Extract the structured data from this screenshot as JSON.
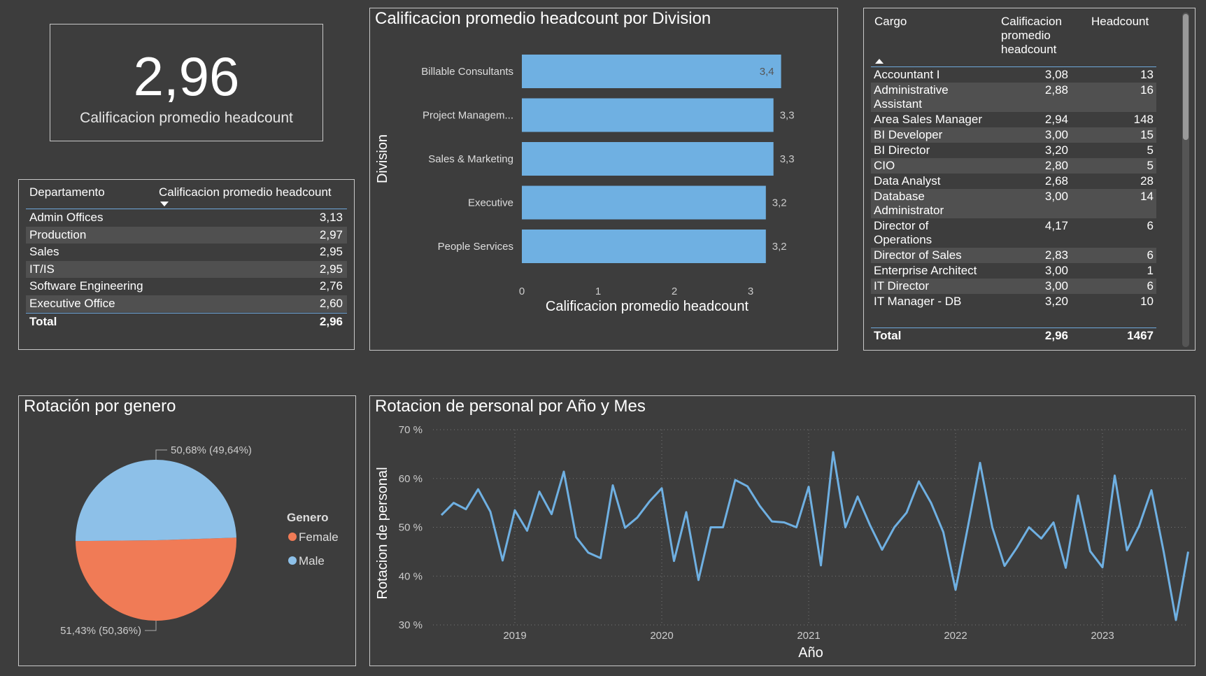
{
  "kpi": {
    "value": "2,96",
    "label": "Calificacion promedio headcount"
  },
  "dept_table": {
    "headers": [
      "Departamento",
      "Calificacion promedio headcount"
    ],
    "rows": [
      {
        "name": "Admin Offices",
        "value": "3,13"
      },
      {
        "name": "Production",
        "value": "2,97"
      },
      {
        "name": "Sales",
        "value": "2,95"
      },
      {
        "name": "IT/IS",
        "value": "2,95"
      },
      {
        "name": "Software Engineering",
        "value": "2,76"
      },
      {
        "name": "Executive Office",
        "value": "2,60"
      }
    ],
    "total": {
      "name": "Total",
      "value": "2,96"
    }
  },
  "cargo_table": {
    "headers": [
      "Cargo",
      "Calificacion promedio headcount",
      "Headcount"
    ],
    "rows": [
      {
        "name": "Accountant I",
        "value": "3,08",
        "count": "13"
      },
      {
        "name": "Administrative Assistant",
        "value": "2,88",
        "count": "16"
      },
      {
        "name": "Area Sales Manager",
        "value": "2,94",
        "count": "148"
      },
      {
        "name": "BI Developer",
        "value": "3,00",
        "count": "15"
      },
      {
        "name": "BI Director",
        "value": "3,20",
        "count": "5"
      },
      {
        "name": "CIO",
        "value": "2,80",
        "count": "5"
      },
      {
        "name": "Data Analyst",
        "value": "2,68",
        "count": "28"
      },
      {
        "name": "Database Administrator",
        "value": "3,00",
        "count": "14"
      },
      {
        "name": "Director of Operations",
        "value": "4,17",
        "count": "6"
      },
      {
        "name": "Director of Sales",
        "value": "2,83",
        "count": "6"
      },
      {
        "name": "Enterprise Architect",
        "value": "3,00",
        "count": "1"
      },
      {
        "name": "IT Director",
        "value": "3,00",
        "count": "6"
      },
      {
        "name": "IT Manager - DB",
        "value": "3,20",
        "count": "10"
      }
    ],
    "total": {
      "name": "Total",
      "value": "2,96",
      "count": "1467"
    }
  },
  "chart_data": [
    {
      "type": "bar",
      "orientation": "horizontal",
      "title": "Calificacion promedio headcount por Division",
      "xlabel": "Calificacion promedio headcount",
      "ylabel": "Division",
      "categories": [
        "Billable Consultants",
        "Project Managem...",
        "Sales & Marketing",
        "Executive",
        "People Services"
      ],
      "values": [
        3.4,
        3.3,
        3.3,
        3.2,
        3.2
      ],
      "data_labels": [
        "3,4",
        "3,3",
        "3,3",
        "3,2",
        "3,2"
      ],
      "xticks": [
        "0",
        "1",
        "2",
        "3"
      ],
      "xlim": [
        0,
        3.4
      ],
      "color": "#6fb0e2"
    },
    {
      "type": "pie",
      "title": "Rotación por genero",
      "legend_title": "Genero",
      "labels": [
        "Female",
        "Male"
      ],
      "slice_labels": [
        "51,43% (50,36%)",
        "50,68% (49,64%)"
      ],
      "values": [
        50.36,
        49.64
      ],
      "colors": [
        "#f07b56",
        "#8dc0e8"
      ],
      "legend_position": "right"
    },
    {
      "type": "line",
      "title": "Rotacion de personal por Año y Mes",
      "xlabel": "Año",
      "ylabel": "Rotacion de personal",
      "yticks": [
        "30 %",
        "40 %",
        "50 %",
        "60 %",
        "70 %"
      ],
      "ylim": [
        30,
        70
      ],
      "xticks": [
        "2019",
        "2020",
        "2021",
        "2022",
        "2023"
      ],
      "color": "#6fb0e2",
      "x_start": "2018-07",
      "x": [
        "2018-07",
        "2018-08",
        "2018-09",
        "2018-10",
        "2018-11",
        "2018-12",
        "2019-01",
        "2019-02",
        "2019-03",
        "2019-04",
        "2019-05",
        "2019-06",
        "2019-07",
        "2019-08",
        "2019-09",
        "2019-10",
        "2019-11",
        "2019-12",
        "2020-01",
        "2020-02",
        "2020-03",
        "2020-04",
        "2020-05",
        "2020-06",
        "2020-07",
        "2020-08",
        "2020-09",
        "2020-10",
        "2020-11",
        "2020-12",
        "2021-01",
        "2021-02",
        "2021-03",
        "2021-04",
        "2021-05",
        "2021-06",
        "2021-07",
        "2021-08",
        "2021-09",
        "2021-10",
        "2021-11",
        "2021-12",
        "2022-01",
        "2022-02",
        "2022-03",
        "2022-04",
        "2022-05",
        "2022-06",
        "2022-07",
        "2022-08",
        "2022-09",
        "2022-10",
        "2022-11",
        "2022-12",
        "2023-01",
        "2023-02",
        "2023-03",
        "2023-04",
        "2023-05",
        "2023-06",
        "2023-07",
        "2023-08"
      ],
      "values": [
        52.5,
        55.0,
        53.7,
        57.8,
        53.2,
        43.2,
        53.5,
        49.3,
        57.3,
        52.7,
        61.4,
        48.0,
        44.8,
        43.7,
        58.6,
        49.9,
        52.0,
        55.3,
        58.0,
        43.1,
        53.1,
        39.2,
        50.0,
        50.0,
        59.7,
        58.4,
        54.4,
        51.2,
        51.0,
        50.0,
        58.3,
        42.2,
        65.4,
        50.0,
        56.3,
        50.5,
        45.4,
        50.0,
        53.0,
        59.4,
        55.0,
        49.0,
        37.2,
        50.0,
        63.2,
        50.0,
        42.1,
        45.8,
        50.0,
        47.7,
        51.0,
        41.7,
        56.5,
        45.1,
        41.8,
        60.6,
        45.3,
        50.3,
        57.6,
        45.0,
        31.0,
        45.0
      ]
    }
  ]
}
